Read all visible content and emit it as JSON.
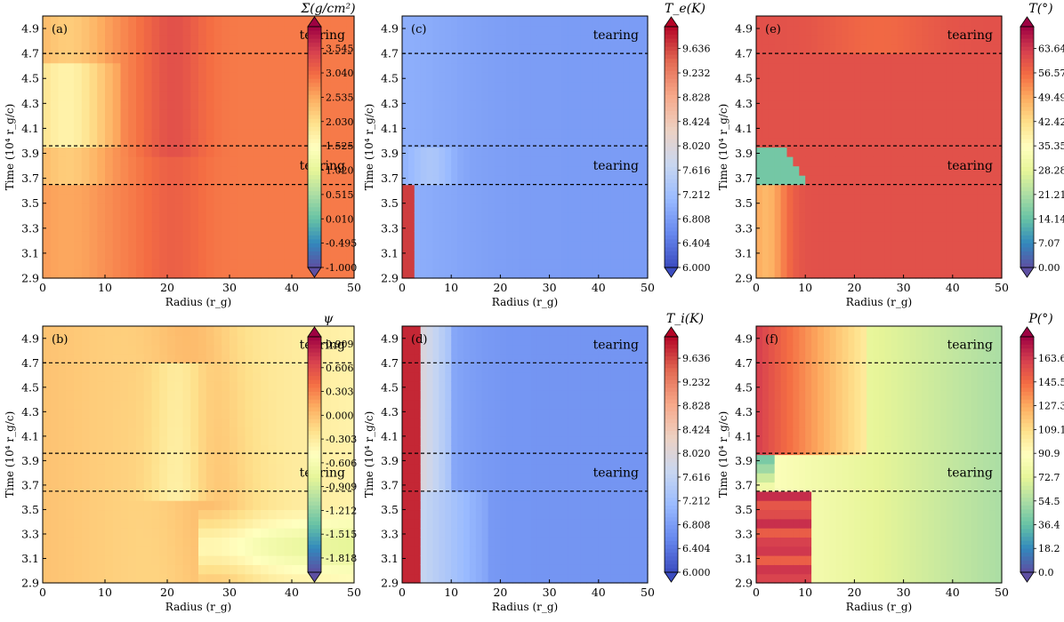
{
  "chart_data": [
    {
      "type": "heatmap",
      "panel_label": "(a)",
      "colorbar_title": "Σ(g/cm²)",
      "colormap": "Spectral_r",
      "xlabel": "Radius (r_g)",
      "ylabel": "Time (10⁴ r_g/c)",
      "xlim": [
        0,
        50
      ],
      "ylim": [
        2.9,
        5.0
      ],
      "x_ticks": [
        "0",
        "10",
        "20",
        "30",
        "40",
        "50"
      ],
      "y_ticks": [
        "2.9",
        "3.1",
        "3.3",
        "3.5",
        "3.7",
        "3.9",
        "4.1",
        "4.3",
        "4.5",
        "4.7",
        "4.9"
      ],
      "colorbar_ticks": [
        "3.545",
        "3.040",
        "2.535",
        "2.030",
        "1.525",
        "1.020",
        "0.515",
        "0.010",
        "-0.495",
        "-1.000"
      ],
      "colorbar_range": [
        -1.0,
        4.0
      ],
      "tearing_lines": [
        4.7,
        3.96,
        3.65
      ],
      "annotations": [
        "tearing",
        "tearing"
      ]
    },
    {
      "type": "heatmap",
      "panel_label": "(c)",
      "colorbar_title": "T_e(K)",
      "colormap": "coolwarm",
      "xlabel": "Radius (r_g)",
      "ylabel": "Time (10⁴ r_g/c)",
      "xlim": [
        0,
        50
      ],
      "ylim": [
        2.9,
        5.0
      ],
      "x_ticks": [
        "0",
        "10",
        "20",
        "30",
        "40",
        "50"
      ],
      "y_ticks": [
        "2.9",
        "3.1",
        "3.3",
        "3.5",
        "3.7",
        "3.9",
        "4.1",
        "4.3",
        "4.5",
        "4.7",
        "4.9"
      ],
      "colorbar_ticks": [
        "9.636",
        "9.232",
        "8.828",
        "8.424",
        "8.020",
        "7.616",
        "7.212",
        "6.808",
        "6.404",
        "6.000"
      ],
      "colorbar_range": [
        6.0,
        10.0
      ],
      "tearing_lines": [
        4.7,
        3.96,
        3.65
      ],
      "annotations": [
        "tearing",
        "tearing"
      ]
    },
    {
      "type": "heatmap",
      "panel_label": "(e)",
      "colorbar_title": "T(°)",
      "colormap": "Spectral_r",
      "xlabel": "Radius (r_g)",
      "ylabel": "Time (10⁴ r_g/c)",
      "xlim": [
        0,
        50
      ],
      "ylim": [
        2.9,
        5.0
      ],
      "x_ticks": [
        "0",
        "10",
        "20",
        "30",
        "40",
        "50"
      ],
      "y_ticks": [
        "2.9",
        "3.1",
        "3.3",
        "3.5",
        "3.7",
        "3.9",
        "4.1",
        "4.3",
        "4.5",
        "4.7",
        "4.9"
      ],
      "colorbar_ticks": [
        "63.64",
        "56.57",
        "49.49",
        "42.42",
        "35.35",
        "28.28",
        "21.21",
        "14.14",
        "7.07",
        "0.00"
      ],
      "colorbar_range": [
        0.0,
        70.0
      ],
      "tearing_lines": [
        4.7,
        3.96,
        3.65
      ],
      "annotations": [
        "tearing",
        "tearing"
      ]
    },
    {
      "type": "heatmap",
      "panel_label": "(b)",
      "colorbar_title": "ψ",
      "colormap": "Spectral_r",
      "xlabel": "Radius (r_g)",
      "ylabel": "Time (10⁴ r_g/c)",
      "xlim": [
        0,
        50
      ],
      "ylim": [
        2.9,
        5.0
      ],
      "x_ticks": [
        "0",
        "10",
        "20",
        "30",
        "40",
        "50"
      ],
      "y_ticks": [
        "2.9",
        "3.1",
        "3.3",
        "3.5",
        "3.7",
        "3.9",
        "4.1",
        "4.3",
        "4.5",
        "4.7",
        "4.9"
      ],
      "colorbar_ticks": [
        "0.909",
        "0.606",
        "0.303",
        "0.000",
        "-0.303",
        "-0.606",
        "-0.909",
        "-1.212",
        "-1.515",
        "-1.818"
      ],
      "colorbar_range": [
        -2.0,
        1.0
      ],
      "tearing_lines": [
        4.7,
        3.96,
        3.65
      ],
      "annotations": [
        "tearing",
        "tearing"
      ]
    },
    {
      "type": "heatmap",
      "panel_label": "(d)",
      "colorbar_title": "T_i(K)",
      "colormap": "coolwarm",
      "xlabel": "Radius (r_g)",
      "ylabel": "Time (10⁴ r_g/c)",
      "xlim": [
        0,
        50
      ],
      "ylim": [
        2.9,
        5.0
      ],
      "x_ticks": [
        "0",
        "10",
        "20",
        "30",
        "40",
        "50"
      ],
      "y_ticks": [
        "2.9",
        "3.1",
        "3.3",
        "3.5",
        "3.7",
        "3.9",
        "4.1",
        "4.3",
        "4.5",
        "4.7",
        "4.9"
      ],
      "colorbar_ticks": [
        "9.636",
        "9.232",
        "8.828",
        "8.424",
        "8.020",
        "7.616",
        "7.212",
        "6.808",
        "6.404",
        "6.000"
      ],
      "colorbar_range": [
        6.0,
        10.0
      ],
      "tearing_lines": [
        4.7,
        3.96,
        3.65
      ],
      "annotations": [
        "tearing",
        "tearing"
      ]
    },
    {
      "type": "heatmap",
      "panel_label": "(f)",
      "colorbar_title": "P(°)",
      "colormap": "Spectral_r",
      "xlabel": "Radius (r_g)",
      "ylabel": "Time (10⁴ r_g/c)",
      "xlim": [
        0,
        50
      ],
      "ylim": [
        2.9,
        5.0
      ],
      "x_ticks": [
        "0",
        "10",
        "20",
        "30",
        "40",
        "50"
      ],
      "y_ticks": [
        "2.9",
        "3.1",
        "3.3",
        "3.5",
        "3.7",
        "3.9",
        "4.1",
        "4.3",
        "4.5",
        "4.7",
        "4.9"
      ],
      "colorbar_ticks": [
        "163.6",
        "145.5",
        "127.3",
        "109.1",
        "90.9",
        "72.7",
        "54.5",
        "36.4",
        "18.2",
        "0.0"
      ],
      "colorbar_range": [
        0.0,
        180.0
      ],
      "tearing_lines": [
        4.7,
        3.96,
        3.65
      ],
      "annotations": [
        "tearing",
        "tearing"
      ]
    }
  ]
}
